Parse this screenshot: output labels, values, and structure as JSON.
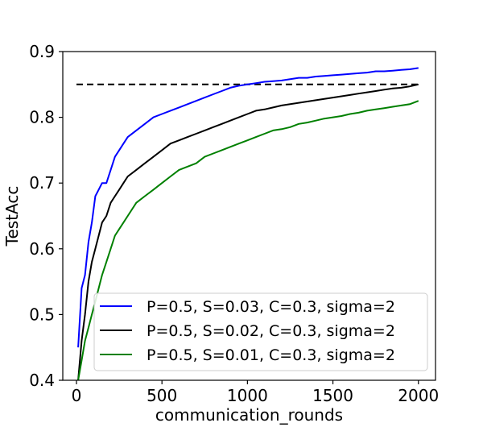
{
  "chart_data": {
    "type": "line",
    "title": "",
    "xlabel": "communication_rounds",
    "ylabel": "TestAcc",
    "xlim": [
      -80,
      2100
    ],
    "ylim": [
      0.4,
      0.9
    ],
    "xticks": [
      0,
      500,
      1000,
      1500,
      2000
    ],
    "yticks": [
      0.4,
      0.5,
      0.6,
      0.7,
      0.8,
      0.9
    ],
    "xtick_labels": [
      "0",
      "500",
      "1000",
      "1500",
      "2000"
    ],
    "ytick_labels": [
      "0.4",
      "0.5",
      "0.6",
      "0.7",
      "0.8",
      "0.9"
    ],
    "grid": false,
    "legend_placement": "lower-right",
    "reference_line": {
      "y": 0.85,
      "x": [
        0,
        2000
      ],
      "style": "dashed",
      "color": "#000000"
    },
    "x": [
      10,
      30,
      50,
      70,
      90,
      110,
      130,
      150,
      175,
      200,
      225,
      250,
      275,
      300,
      350,
      400,
      450,
      500,
      550,
      600,
      650,
      700,
      750,
      800,
      850,
      900,
      950,
      1000,
      1050,
      1100,
      1150,
      1200,
      1250,
      1300,
      1350,
      1400,
      1450,
      1500,
      1550,
      1600,
      1650,
      1700,
      1750,
      1800,
      1850,
      1900,
      1950,
      2000
    ],
    "series": [
      {
        "name": "P=0.5, S=0.03, C=0.3, sigma=2",
        "color": "#0000ff",
        "values": [
          0.45,
          0.54,
          0.56,
          0.61,
          0.64,
          0.68,
          0.69,
          0.7,
          0.7,
          0.72,
          0.74,
          0.75,
          0.76,
          0.77,
          0.78,
          0.79,
          0.8,
          0.805,
          0.81,
          0.815,
          0.82,
          0.825,
          0.83,
          0.835,
          0.84,
          0.845,
          0.848,
          0.85,
          0.852,
          0.854,
          0.855,
          0.856,
          0.858,
          0.86,
          0.86,
          0.862,
          0.863,
          0.864,
          0.865,
          0.866,
          0.867,
          0.868,
          0.87,
          0.87,
          0.871,
          0.872,
          0.873,
          0.875
        ]
      },
      {
        "name": "P=0.5, S=0.02, C=0.3, sigma=2",
        "color": "#000000",
        "values": [
          0.4,
          0.46,
          0.5,
          0.55,
          0.58,
          0.6,
          0.62,
          0.64,
          0.65,
          0.67,
          0.68,
          0.69,
          0.7,
          0.71,
          0.72,
          0.73,
          0.74,
          0.75,
          0.76,
          0.765,
          0.77,
          0.775,
          0.78,
          0.785,
          0.79,
          0.795,
          0.8,
          0.805,
          0.81,
          0.812,
          0.815,
          0.818,
          0.82,
          0.822,
          0.824,
          0.826,
          0.828,
          0.83,
          0.832,
          0.834,
          0.836,
          0.838,
          0.84,
          0.842,
          0.844,
          0.845,
          0.847,
          0.85
        ]
      },
      {
        "name": "P=0.5, S=0.01, C=0.3, sigma=2",
        "color": "#008000",
        "values": [
          0.38,
          0.43,
          0.46,
          0.48,
          0.5,
          0.52,
          0.54,
          0.56,
          0.58,
          0.6,
          0.62,
          0.63,
          0.64,
          0.65,
          0.67,
          0.68,
          0.69,
          0.7,
          0.71,
          0.72,
          0.725,
          0.73,
          0.74,
          0.745,
          0.75,
          0.755,
          0.76,
          0.765,
          0.77,
          0.775,
          0.78,
          0.782,
          0.785,
          0.79,
          0.792,
          0.795,
          0.798,
          0.8,
          0.802,
          0.805,
          0.807,
          0.81,
          0.812,
          0.814,
          0.816,
          0.818,
          0.82,
          0.825
        ]
      }
    ]
  }
}
